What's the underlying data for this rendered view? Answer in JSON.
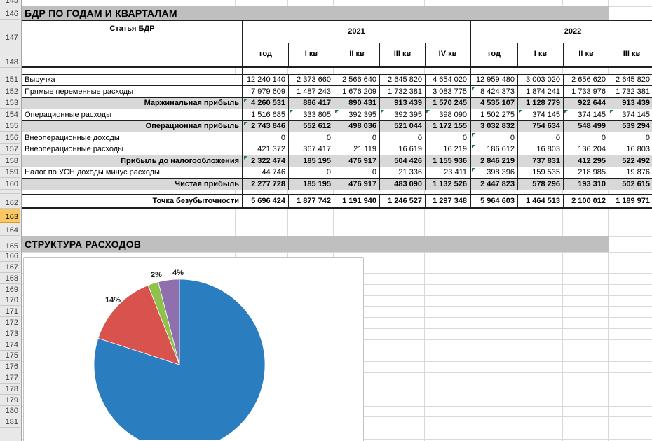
{
  "sheet": {
    "row_numbers": [
      "145",
      "146",
      "147",
      "148",
      "151",
      "152",
      "153",
      "154",
      "155",
      "156",
      "157",
      "158",
      "159",
      "160",
      "161",
      "162",
      "163",
      "164",
      "165",
      "166",
      "167",
      "168",
      "169",
      "170",
      "171",
      "172",
      "173",
      "174",
      "175",
      "176",
      "177",
      "178",
      "179",
      "180",
      "181"
    ],
    "selected_row": "163"
  },
  "table": {
    "title": "БДР ПО ГОДАМ И КВАРТАЛАМ",
    "stub_header": "Статья БДР",
    "groups": [
      {
        "year": "2021",
        "cols": [
          "год",
          "I кв",
          "II кв",
          "III кв",
          "IV кв"
        ]
      },
      {
        "year": "2022",
        "cols": [
          "год",
          "I кв",
          "II кв",
          "III кв"
        ]
      }
    ],
    "rows": [
      {
        "label": "Выручка",
        "kind": "data",
        "v2021": [
          "12 240 140",
          "2 373 660",
          "2 566 640",
          "2 645 820",
          "4 654 020"
        ],
        "v2022": [
          "12 959 480",
          "3 003 020",
          "2 656 620",
          "2 645 820"
        ],
        "f21": [],
        "f22": []
      },
      {
        "label": "Прямые переменные расходы",
        "kind": "data",
        "v2021": [
          "7 979 609",
          "1 487 243",
          "1 676 209",
          "1 732 381",
          "3 083 775"
        ],
        "v2022": [
          "8 424 373",
          "1 874 241",
          "1 733 976",
          "1 732 381"
        ],
        "f21": [],
        "f22": [
          0
        ]
      },
      {
        "label": "Маржинальная прибыль",
        "kind": "subtotal",
        "v2021": [
          "4 260 531",
          "886 417",
          "890 431",
          "913 439",
          "1 570 245"
        ],
        "v2022": [
          "4 535 107",
          "1 128 779",
          "922 644",
          "913 439"
        ],
        "f21": [
          0
        ],
        "f22": []
      },
      {
        "label": "Операционные расходы",
        "kind": "data",
        "v2021": [
          "1 516 685",
          "333 805",
          "392 395",
          "392 395",
          "398 090"
        ],
        "v2022": [
          "1 502 275",
          "374 145",
          "374 145",
          "374 145"
        ],
        "f21": [
          1,
          2,
          3,
          4
        ],
        "f22": [
          1,
          2,
          3
        ]
      },
      {
        "label": "Операционная прибыль",
        "kind": "subtotal",
        "v2021": [
          "2 743 846",
          "552 612",
          "498 036",
          "521 044",
          "1 172 155"
        ],
        "v2022": [
          "3 032 832",
          "754 634",
          "548 499",
          "539 294"
        ],
        "f21": [
          0
        ],
        "f22": []
      },
      {
        "label": "Внеоперационные доходы",
        "kind": "data",
        "v2021": [
          "0",
          "0",
          "0",
          "0",
          "0"
        ],
        "v2022": [
          "0",
          "0",
          "0",
          "0"
        ],
        "f21": [],
        "f22": [
          0
        ]
      },
      {
        "label": "Внеоперационные расходы",
        "kind": "data",
        "v2021": [
          "421 372",
          "367 417",
          "21 119",
          "16 619",
          "16 219"
        ],
        "v2022": [
          "186 612",
          "16 803",
          "136 204",
          "16 803"
        ],
        "f21": [],
        "f22": [
          0
        ]
      },
      {
        "label": "Прибыль до налогообложения",
        "kind": "subtotal",
        "v2021": [
          "2 322 474",
          "185 195",
          "476 917",
          "504 426",
          "1 155 936"
        ],
        "v2022": [
          "2 846 219",
          "737 831",
          "412 295",
          "522 492"
        ],
        "f21": [
          0
        ],
        "f22": []
      },
      {
        "label": "Налог по УСН доходы минус расходы",
        "kind": "data",
        "v2021": [
          "44 746",
          "0",
          "0",
          "21 336",
          "23 411"
        ],
        "v2022": [
          "398 396",
          "159 535",
          "218 985",
          "19 876"
        ],
        "f21": [],
        "f22": [
          0
        ]
      },
      {
        "label": "Чистая прибыль",
        "kind": "subtotal",
        "v2021": [
          "2 277 728",
          "185 195",
          "476 917",
          "483 090",
          "1 132 526"
        ],
        "v2022": [
          "2 447 823",
          "578 296",
          "193 310",
          "502 615"
        ],
        "f21": [],
        "f22": []
      }
    ],
    "breakeven": {
      "label": "Точка безубыточности",
      "v2021": [
        "5 696 424",
        "1 877 742",
        "1 191 940",
        "1 246 527",
        "1 297 348"
      ],
      "v2022": [
        "5 964 603",
        "1 464 513",
        "2 100 012",
        "1 189 971"
      ]
    }
  },
  "chart_section_title": "СТРУКТУРА РАСХОДОВ",
  "chart_data": {
    "type": "pie",
    "title": "СТРУКТУРА РАСХОДОВ",
    "slices": [
      {
        "label": "80%",
        "value": 80,
        "color": "#2a7ebf",
        "label_visible": false
      },
      {
        "label": "14%",
        "value": 14,
        "color": "#d9534e",
        "label_visible": true
      },
      {
        "label": "2%",
        "value": 2,
        "color": "#8fc14d",
        "label_visible": true
      },
      {
        "label": "4%",
        "value": 4,
        "color": "#8f6fad",
        "label_visible": true
      }
    ],
    "start_angle_deg": 0,
    "clockwise": true,
    "legend": "none"
  }
}
